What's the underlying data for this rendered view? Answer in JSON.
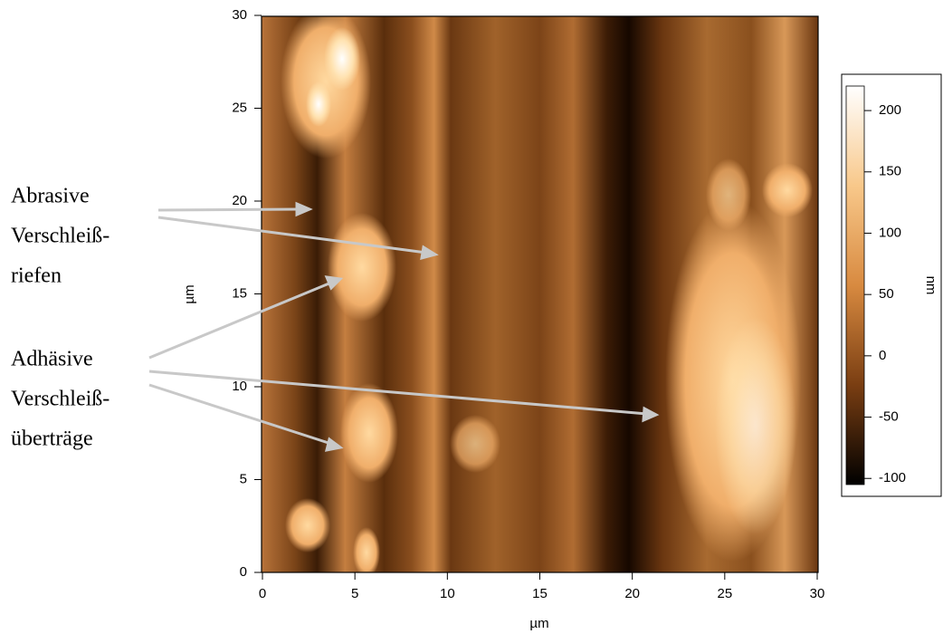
{
  "chart_data": {
    "type": "image",
    "xlabel": "µm",
    "ylabel": "µm",
    "xlim": [
      0,
      30
    ],
    "xticks": [
      0,
      5,
      10,
      15,
      20,
      25,
      30
    ],
    "ylim": [
      0,
      30
    ],
    "yticks": [
      0,
      5,
      10,
      15,
      20,
      25,
      30
    ],
    "colorbar": {
      "label": "nm",
      "lim": [
        -105,
        220
      ],
      "ticks": [
        -100,
        -50,
        0,
        50,
        100,
        150,
        200
      ]
    },
    "annotations": [
      {
        "lines": [
          "Abrasive",
          "Verschleiß-",
          "riefen"
        ]
      },
      {
        "lines": [
          "Adhäsive",
          "Verschleiß-",
          "überträge"
        ]
      }
    ]
  }
}
